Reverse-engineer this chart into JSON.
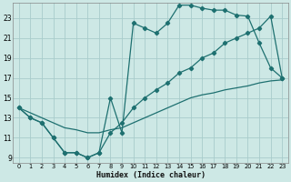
{
  "xlabel": "Humidex (Indice chaleur)",
  "xlim": [
    -0.5,
    23.5
  ],
  "ylim": [
    8.5,
    24.5
  ],
  "yticks": [
    9,
    11,
    13,
    15,
    17,
    19,
    21,
    23
  ],
  "xticks": [
    0,
    1,
    2,
    3,
    4,
    5,
    6,
    7,
    8,
    9,
    10,
    11,
    12,
    13,
    14,
    15,
    16,
    17,
    18,
    19,
    20,
    21,
    22,
    23
  ],
  "bg_color": "#cde8e5",
  "grid_color": "#a8cccb",
  "line_color": "#1e7070",
  "line1_x": [
    0,
    1,
    2,
    3,
    4,
    5,
    6,
    7,
    8,
    9,
    10,
    11,
    12,
    13,
    14,
    15,
    16,
    17,
    18,
    19,
    20,
    21,
    22,
    23
  ],
  "line1_y": [
    14.0,
    13.0,
    12.5,
    11.0,
    9.5,
    9.5,
    9.0,
    9.5,
    15.0,
    11.5,
    22.5,
    22.0,
    21.5,
    22.5,
    24.3,
    24.3,
    24.0,
    23.8,
    23.8,
    23.3,
    23.2,
    20.5,
    18.0,
    17.0
  ],
  "line2_x": [
    0,
    1,
    2,
    3,
    4,
    5,
    6,
    7,
    8,
    9,
    10,
    11,
    12,
    13,
    14,
    15,
    16,
    17,
    18,
    19,
    20,
    21,
    22,
    23
  ],
  "line2_y": [
    14.0,
    13.0,
    12.5,
    11.0,
    9.5,
    9.5,
    9.0,
    9.5,
    11.5,
    12.5,
    14.0,
    15.0,
    15.8,
    16.5,
    17.5,
    18.0,
    19.0,
    19.5,
    20.5,
    21.0,
    21.5,
    22.0,
    23.2,
    17.0
  ],
  "line3_x": [
    0,
    1,
    2,
    3,
    4,
    5,
    6,
    7,
    8,
    9,
    10,
    11,
    12,
    13,
    14,
    15,
    16,
    17,
    18,
    19,
    20,
    21,
    22,
    23
  ],
  "line3_y": [
    14.0,
    13.5,
    13.0,
    12.5,
    12.0,
    11.8,
    11.5,
    11.5,
    11.8,
    12.0,
    12.5,
    13.0,
    13.5,
    14.0,
    14.5,
    15.0,
    15.3,
    15.5,
    15.8,
    16.0,
    16.2,
    16.5,
    16.7,
    16.8
  ]
}
